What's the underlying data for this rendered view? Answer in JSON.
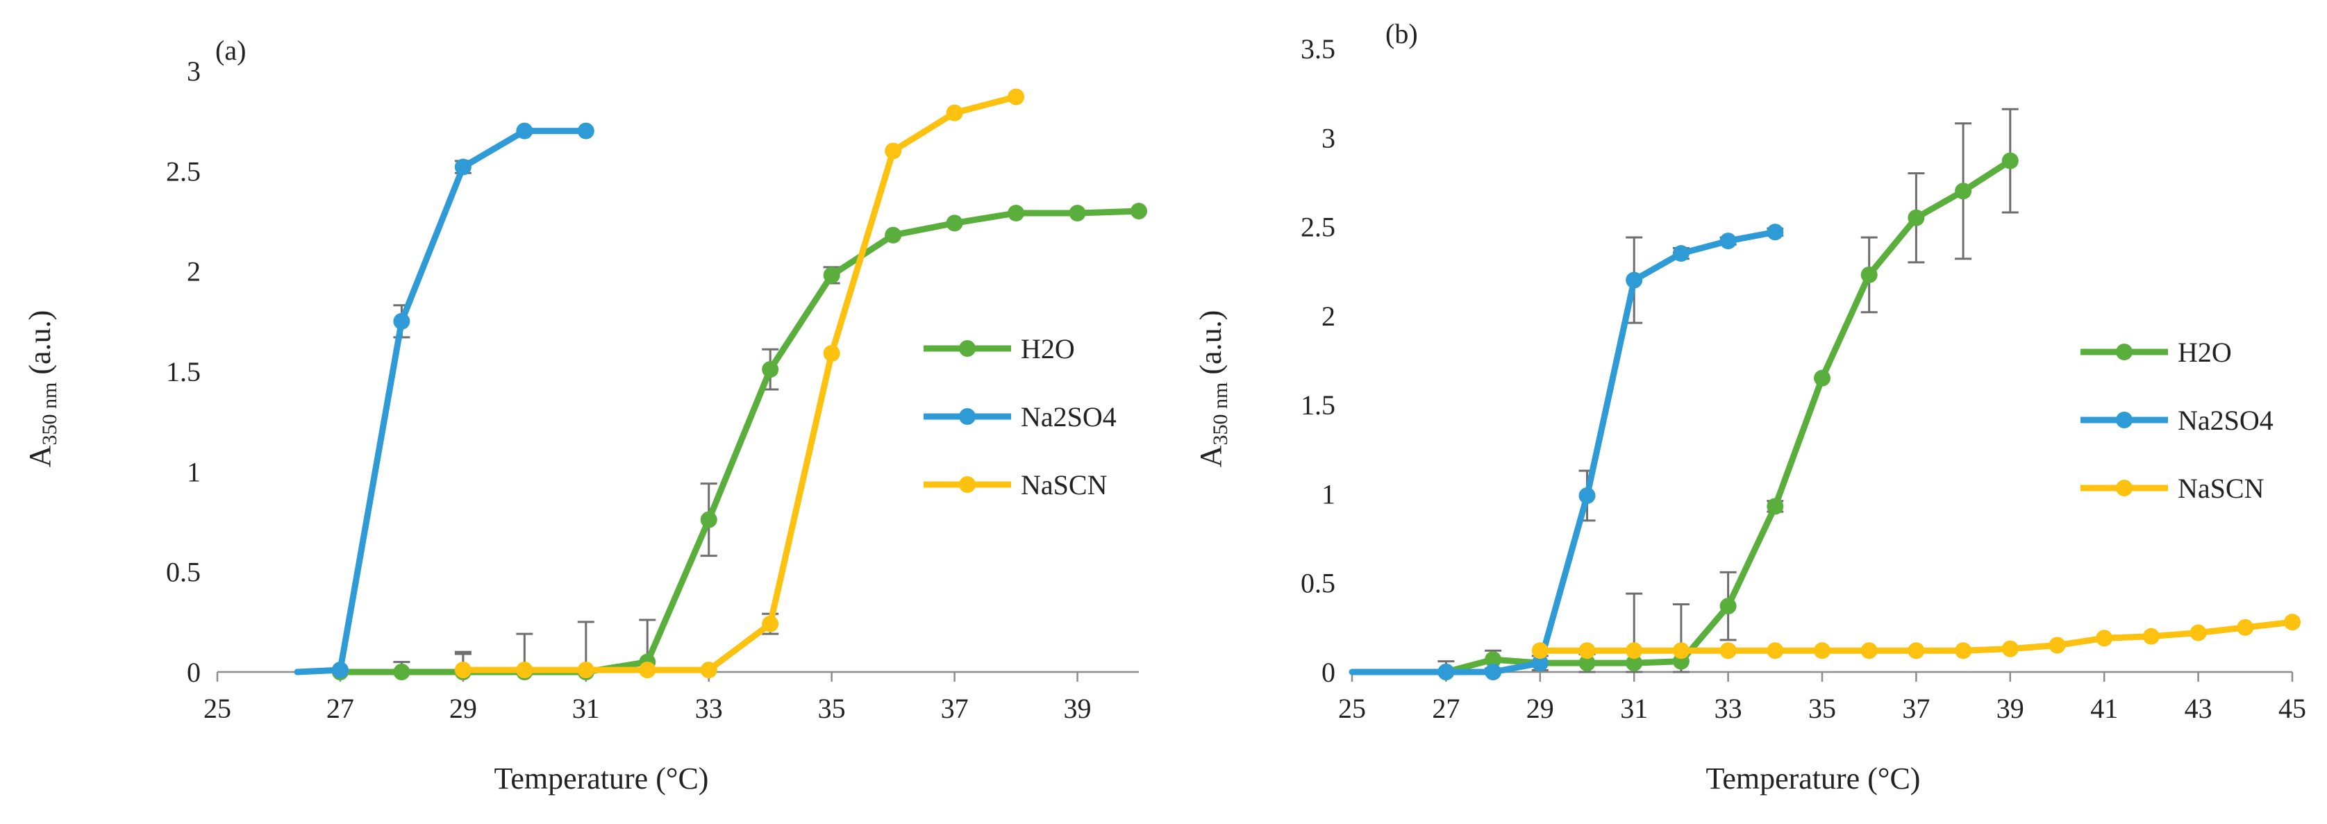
{
  "chart_data": [
    {
      "panel": "(a)",
      "type": "line",
      "title": "",
      "xlabel": "Temperature (°C)",
      "ylabel_main": "A",
      "ylabel_sub": "350 nm",
      "ylabel_tail": " (a.u.)",
      "xlim": [
        25,
        40
      ],
      "ylim": [
        0,
        3
      ],
      "x_ticks": [
        25,
        27,
        29,
        31,
        33,
        35,
        37,
        39
      ],
      "y_ticks": [
        0,
        0.5,
        1,
        1.5,
        2,
        2.5,
        3
      ],
      "y_tick_labels": [
        "0",
        "0.5",
        "1",
        "1.5",
        "2",
        "2.5",
        "3"
      ],
      "legend_position": "right-middle",
      "series": [
        {
          "name": "H2O",
          "color": "#5aae3c",
          "points": [
            [
              27,
              0
            ],
            [
              28,
              0
            ],
            [
              29,
              0
            ],
            [
              30,
              0
            ],
            [
              31,
              0
            ],
            [
              32,
              0.05
            ],
            [
              33,
              0.76
            ],
            [
              34,
              1.51
            ],
            [
              35,
              1.98
            ],
            [
              36,
              2.18
            ],
            [
              37,
              2.24
            ],
            [
              38,
              2.29
            ],
            [
              39,
              2.29
            ],
            [
              40,
              2.3
            ]
          ],
          "errors": [
            [
              28,
              0.05
            ],
            [
              29,
              0.1
            ],
            [
              30,
              0.19
            ],
            [
              31,
              0.25
            ],
            [
              32,
              0.21
            ],
            [
              33,
              0.18
            ],
            [
              34,
              0.1
            ],
            [
              35,
              0.04
            ]
          ]
        },
        {
          "name": "Na2SO4",
          "color": "#2f9bd6",
          "points": [
            [
              26.3,
              0
            ],
            [
              27,
              0.01
            ],
            [
              28,
              1.75
            ],
            [
              29,
              2.52
            ],
            [
              30,
              2.7
            ],
            [
              31,
              2.7
            ]
          ],
          "errors": [
            [
              28,
              0.08
            ],
            [
              29,
              0.03
            ]
          ]
        },
        {
          "name": "NaSCN",
          "color": "#fdc10f",
          "points": [
            [
              29,
              0.01
            ],
            [
              30,
              0.01
            ],
            [
              31,
              0.01
            ],
            [
              32,
              0.01
            ],
            [
              33,
              0.01
            ],
            [
              34,
              0.24
            ],
            [
              35,
              1.59
            ],
            [
              36,
              2.6
            ],
            [
              37,
              2.79
            ],
            [
              38,
              2.87
            ]
          ],
          "errors": [
            [
              29,
              0.08
            ],
            [
              34,
              0.05
            ]
          ]
        }
      ]
    },
    {
      "panel": "(b)",
      "type": "line",
      "title": "",
      "xlabel": "Temperature (°C)",
      "ylabel_main": "A",
      "ylabel_sub": "350 nm",
      "ylabel_tail": " (a.u.)",
      "xlim": [
        25,
        45
      ],
      "ylim": [
        0,
        3.5
      ],
      "x_ticks": [
        25,
        27,
        29,
        31,
        33,
        35,
        37,
        39,
        41,
        43,
        45
      ],
      "y_ticks": [
        0,
        0.5,
        1,
        1.5,
        2,
        2.5,
        3,
        3.5
      ],
      "y_tick_labels": [
        "0",
        "0.5",
        "1",
        "1.5",
        "2",
        "2.5",
        "3",
        "3.5"
      ],
      "legend_position": "right-middle",
      "series": [
        {
          "name": "H2O",
          "color": "#5aae3c",
          "points": [
            [
              27,
              0
            ],
            [
              28,
              0.07
            ],
            [
              29,
              0.05
            ],
            [
              30,
              0.05
            ],
            [
              31,
              0.05
            ],
            [
              32,
              0.06
            ],
            [
              33,
              0.37
            ],
            [
              34,
              0.93
            ],
            [
              35,
              1.65
            ],
            [
              36,
              2.23
            ],
            [
              37,
              2.55
            ],
            [
              38,
              2.7
            ],
            [
              39,
              2.87
            ]
          ],
          "errors": [
            [
              27,
              0.06
            ],
            [
              28,
              0.05
            ],
            [
              29,
              0.04
            ],
            [
              30,
              0.05
            ],
            [
              31,
              0.39
            ],
            [
              32,
              0.32
            ],
            [
              33,
              0.19
            ],
            [
              34,
              0.03
            ],
            [
              36,
              0.21
            ],
            [
              37,
              0.25
            ],
            [
              38,
              0.38
            ],
            [
              39,
              0.29
            ]
          ]
        },
        {
          "name": "Na2SO4",
          "color": "#2f9bd6",
          "points": [
            [
              25,
              0
            ],
            [
              26,
              0
            ],
            [
              27,
              0
            ],
            [
              28,
              0
            ],
            [
              29,
              0.05
            ],
            [
              30,
              0.99
            ],
            [
              31,
              2.2
            ],
            [
              32,
              2.35
            ],
            [
              33,
              2.42
            ],
            [
              34,
              2.47
            ]
          ],
          "errors": [
            [
              30,
              0.14
            ],
            [
              31,
              0.24
            ],
            [
              32,
              0.03
            ],
            [
              33,
              0.02
            ],
            [
              34,
              0.02
            ]
          ]
        },
        {
          "name": "NaSCN",
          "color": "#fdc10f",
          "points": [
            [
              29,
              0.12
            ],
            [
              30,
              0.12
            ],
            [
              31,
              0.12
            ],
            [
              32,
              0.12
            ],
            [
              33,
              0.12
            ],
            [
              34,
              0.12
            ],
            [
              35,
              0.12
            ],
            [
              36,
              0.12
            ],
            [
              37,
              0.12
            ],
            [
              38,
              0.12
            ],
            [
              39,
              0.13
            ],
            [
              40,
              0.15
            ],
            [
              41,
              0.19
            ],
            [
              42,
              0.2
            ],
            [
              43,
              0.22
            ],
            [
              44,
              0.25
            ],
            [
              45,
              0.28
            ]
          ],
          "errors": []
        }
      ]
    }
  ]
}
